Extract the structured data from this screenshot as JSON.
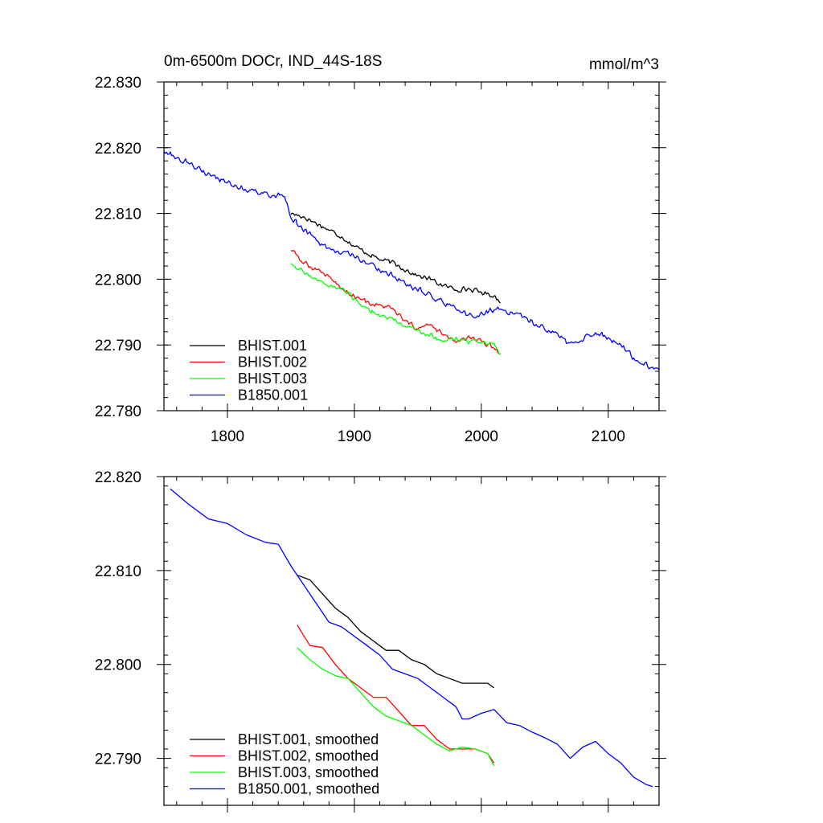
{
  "chart_data": [
    {
      "type": "line",
      "title": "0m-6500m DOCr, IND_44S-18S",
      "units": "mmol/m^3",
      "xlim": [
        1750,
        2140
      ],
      "ylim": [
        22.78,
        22.83
      ],
      "x_ticks": [
        1800,
        1900,
        2000,
        2100
      ],
      "x_tick_labels": [
        "1800",
        "1900",
        "2000",
        "2100"
      ],
      "y_ticks": [
        22.78,
        22.79,
        22.8,
        22.81,
        22.82,
        22.83
      ],
      "y_tick_labels": [
        "22.780",
        "22.790",
        "22.800",
        "22.810",
        "22.820",
        "22.830"
      ],
      "legend_position": "bottom-left",
      "series": [
        {
          "name": "BHIST.001",
          "color": "#000000",
          "noise": 0.0006,
          "x": [
            1850,
            1860,
            1870,
            1880,
            1890,
            1900,
            1910,
            1920,
            1930,
            1940,
            1950,
            1960,
            1970,
            1980,
            1990,
            2000,
            2010,
            2015
          ],
          "y": [
            22.81,
            22.8095,
            22.8085,
            22.8075,
            22.8065,
            22.805,
            22.804,
            22.803,
            22.8025,
            22.8015,
            22.8005,
            22.8,
            22.799,
            22.7985,
            22.7985,
            22.798,
            22.7975,
            22.7965
          ]
        },
        {
          "name": "BHIST.002",
          "color": "#ff0000",
          "noise": 0.0006,
          "x": [
            1850,
            1860,
            1870,
            1880,
            1890,
            1900,
            1910,
            1920,
            1930,
            1940,
            1950,
            1960,
            1970,
            1980,
            1990,
            2000,
            2010,
            2015
          ],
          "y": [
            22.8045,
            22.8025,
            22.8015,
            22.8005,
            22.7985,
            22.7975,
            22.7965,
            22.796,
            22.7955,
            22.7935,
            22.7925,
            22.793,
            22.7915,
            22.7905,
            22.791,
            22.7905,
            22.7895,
            22.7885
          ]
        },
        {
          "name": "BHIST.003",
          "color": "#00ff00",
          "noise": 0.0006,
          "x": [
            1850,
            1860,
            1870,
            1880,
            1890,
            1900,
            1910,
            1920,
            1930,
            1940,
            1950,
            1960,
            1970,
            1980,
            1990,
            2000,
            2010,
            2015
          ],
          "y": [
            22.8025,
            22.801,
            22.8,
            22.799,
            22.7985,
            22.797,
            22.7955,
            22.7945,
            22.794,
            22.793,
            22.792,
            22.7915,
            22.7905,
            22.791,
            22.7905,
            22.7905,
            22.79,
            22.7885
          ]
        },
        {
          "name": "B1850.001",
          "color": "#0000ff",
          "noise": 0.0007,
          "x": [
            1750,
            1770,
            1790,
            1810,
            1830,
            1845,
            1850,
            1860,
            1870,
            1880,
            1890,
            1900,
            1910,
            1920,
            1930,
            1940,
            1950,
            1960,
            1970,
            1980,
            1990,
            2000,
            2010,
            2020,
            2030,
            2040,
            2050,
            2060,
            2070,
            2080,
            2090,
            2100,
            2110,
            2120,
            2130,
            2140
          ],
          "y": [
            22.8195,
            22.8175,
            22.8155,
            22.814,
            22.813,
            22.8125,
            22.8095,
            22.8075,
            22.806,
            22.8045,
            22.804,
            22.8035,
            22.8025,
            22.8015,
            22.8005,
            22.7995,
            22.7985,
            22.7975,
            22.7965,
            22.7955,
            22.7945,
            22.7945,
            22.7955,
            22.795,
            22.7945,
            22.7935,
            22.7925,
            22.7915,
            22.79,
            22.791,
            22.792,
            22.791,
            22.79,
            22.788,
            22.787,
            22.7865
          ]
        }
      ]
    },
    {
      "type": "line",
      "title": "",
      "xlim": [
        1750,
        2140
      ],
      "ylim": [
        22.785,
        22.82
      ],
      "x_ticks": [
        1800,
        1900,
        2000,
        2100
      ],
      "y_ticks": [
        22.79,
        22.8,
        22.81,
        22.82
      ],
      "y_tick_labels": [
        "22.790",
        "22.800",
        "22.810",
        "22.820"
      ],
      "legend_position": "bottom-left",
      "series": [
        {
          "name": "BHIST.001, smoothed",
          "color": "#000000",
          "x": [
            1855,
            1865,
            1875,
            1885,
            1895,
            1905,
            1915,
            1925,
            1935,
            1945,
            1955,
            1965,
            1975,
            1985,
            1995,
            2005,
            2010
          ],
          "y": [
            22.8095,
            22.809,
            22.8075,
            22.806,
            22.805,
            22.8035,
            22.8025,
            22.8015,
            22.8015,
            22.8005,
            22.8,
            22.799,
            22.7985,
            22.798,
            22.798,
            22.798,
            22.7975
          ]
        },
        {
          "name": "BHIST.002, smoothed",
          "color": "#ff0000",
          "x": [
            1855,
            1865,
            1875,
            1885,
            1895,
            1905,
            1915,
            1925,
            1935,
            1945,
            1955,
            1965,
            1975,
            1985,
            1995,
            2005,
            2010
          ],
          "y": [
            22.8042,
            22.802,
            22.8018,
            22.8,
            22.7985,
            22.7975,
            22.7965,
            22.7965,
            22.795,
            22.7935,
            22.7935,
            22.792,
            22.791,
            22.791,
            22.791,
            22.7905,
            22.7895
          ]
        },
        {
          "name": "BHIST.003, smoothed",
          "color": "#00ff00",
          "x": [
            1855,
            1865,
            1875,
            1885,
            1895,
            1905,
            1915,
            1925,
            1935,
            1945,
            1955,
            1965,
            1975,
            1985,
            1995,
            2005,
            2010
          ],
          "y": [
            22.8018,
            22.8005,
            22.7995,
            22.7988,
            22.7985,
            22.797,
            22.7955,
            22.7945,
            22.794,
            22.7935,
            22.7925,
            22.7915,
            22.7908,
            22.7912,
            22.791,
            22.7905,
            22.7892
          ]
        },
        {
          "name": "B1850.001, smoothed",
          "color": "#0000ff",
          "x": [
            1755,
            1770,
            1785,
            1800,
            1815,
            1830,
            1840,
            1850,
            1860,
            1870,
            1880,
            1890,
            1900,
            1910,
            1920,
            1930,
            1940,
            1950,
            1960,
            1970,
            1980,
            1985,
            1990,
            2000,
            2010,
            2020,
            2030,
            2040,
            2050,
            2060,
            2070,
            2080,
            2090,
            2100,
            2110,
            2120,
            2130,
            2135
          ],
          "y": [
            22.8187,
            22.817,
            22.8155,
            22.815,
            22.8138,
            22.813,
            22.8128,
            22.8105,
            22.8085,
            22.8065,
            22.8045,
            22.804,
            22.803,
            22.802,
            22.801,
            22.7995,
            22.799,
            22.7985,
            22.7975,
            22.7965,
            22.7955,
            22.7942,
            22.7942,
            22.7948,
            22.7952,
            22.7938,
            22.7935,
            22.7928,
            22.7922,
            22.7915,
            22.79,
            22.7912,
            22.7918,
            22.7905,
            22.7895,
            22.788,
            22.7872,
            22.787
          ]
        }
      ]
    }
  ]
}
